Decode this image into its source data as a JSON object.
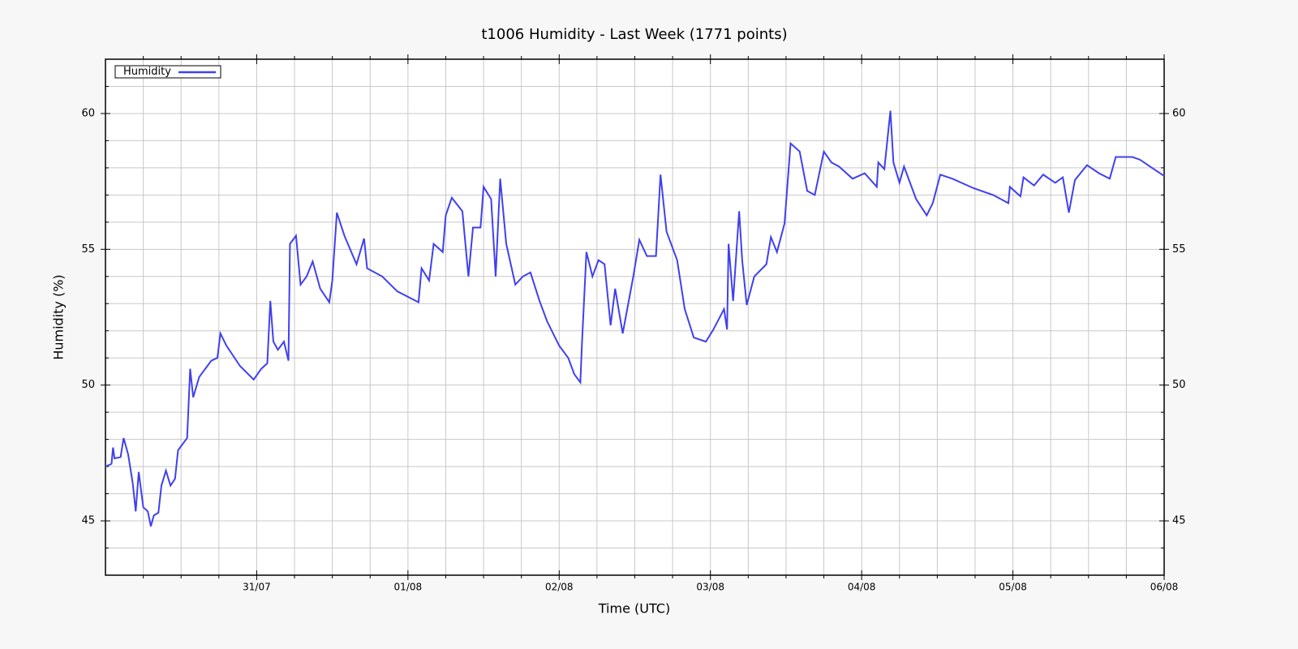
{
  "chart_data": {
    "type": "line",
    "title": "t1006 Humidity - Last Week (1771 points)",
    "x_label": "Time (UTC)",
    "y_label": "Humidity (%)",
    "xlim": [
      0,
      7
    ],
    "xticks": [
      {
        "value": 1,
        "label": "31/07"
      },
      {
        "value": 2,
        "label": "01/08"
      },
      {
        "value": 3,
        "label": "02/08"
      },
      {
        "value": 4,
        "label": "03/08"
      },
      {
        "value": 5,
        "label": "04/08"
      },
      {
        "value": 6,
        "label": "05/08"
      },
      {
        "value": 7,
        "label": "06/08"
      }
    ],
    "xminor": [
      0.25,
      0.5,
      0.75,
      1.25,
      1.5,
      1.75,
      2.25,
      2.5,
      2.75,
      3.25,
      3.5,
      3.75,
      4.25,
      4.5,
      4.75,
      5.25,
      5.5,
      5.75,
      6.25,
      6.5,
      6.75
    ],
    "ylim": [
      43,
      62
    ],
    "yticks": [
      45,
      50,
      55,
      60
    ],
    "yminor": [
      44,
      46,
      47,
      48,
      49,
      51,
      52,
      53,
      54,
      56,
      57,
      58,
      59,
      61
    ],
    "grid": true,
    "legend": "top-left",
    "x": [
      0,
      0.04,
      0.05,
      0.06,
      0.1,
      0.12,
      0.15,
      0.18,
      0.2,
      0.22,
      0.25,
      0.28,
      0.3,
      0.32,
      0.35,
      0.37,
      0.4,
      0.43,
      0.46,
      0.48,
      0.54,
      0.56,
      0.58,
      0.62,
      0.7,
      0.74,
      0.76,
      0.8,
      0.89,
      0.98,
      1.03,
      1.07,
      1.09,
      1.11,
      1.14,
      1.18,
      1.21,
      1.22,
      1.26,
      1.29,
      1.33,
      1.37,
      1.42,
      1.48,
      1.5,
      1.53,
      1.58,
      1.66,
      1.71,
      1.73,
      1.83,
      1.93,
      2.07,
      2.09,
      2.14,
      2.17,
      2.23,
      2.25,
      2.29,
      2.36,
      2.4,
      2.43,
      2.48,
      2.5,
      2.55,
      2.58,
      2.61,
      2.65,
      2.71,
      2.76,
      2.81,
      2.87,
      2.92,
      3.0,
      3.06,
      3.1,
      3.14,
      3.15,
      3.18,
      3.22,
      3.26,
      3.3,
      3.34,
      3.37,
      3.42,
      3.49,
      3.53,
      3.58,
      3.64,
      3.67,
      3.71,
      3.78,
      3.83,
      3.89,
      3.97,
      4.02,
      4.09,
      4.11,
      4.12,
      4.15,
      4.19,
      4.21,
      4.24,
      4.29,
      4.37,
      4.4,
      4.44,
      4.49,
      4.53,
      4.59,
      4.64,
      4.69,
      4.75,
      4.8,
      4.85,
      4.94,
      5.02,
      5.1,
      5.11,
      5.15,
      5.19,
      5.21,
      5.25,
      5.28,
      5.36,
      5.43,
      5.47,
      5.52,
      5.6,
      5.74,
      5.87,
      5.97,
      5.98,
      6.05,
      6.07,
      6.14,
      6.2,
      6.28,
      6.33,
      6.37,
      6.41,
      6.49,
      6.57,
      6.64,
      6.68,
      6.79,
      6.84,
      6.92,
      7.0
    ],
    "series": [
      {
        "name": "Humidity",
        "color": "#4040f0",
        "values": [
          47.0,
          47.1,
          47.7,
          47.3,
          47.35,
          48.05,
          47.45,
          46.4,
          45.35,
          46.8,
          45.5,
          45.35,
          44.8,
          45.2,
          45.3,
          46.3,
          46.85,
          46.3,
          46.55,
          47.6,
          48.05,
          50.6,
          49.55,
          50.3,
          50.9,
          51.0,
          51.9,
          51.45,
          50.7,
          50.2,
          50.6,
          50.8,
          53.1,
          51.6,
          51.3,
          51.6,
          50.9,
          55.2,
          55.5,
          53.7,
          54.0,
          54.55,
          53.55,
          53.05,
          53.85,
          56.35,
          55.5,
          54.45,
          55.4,
          54.3,
          54.0,
          53.45,
          53.05,
          54.3,
          53.85,
          55.2,
          54.9,
          56.25,
          56.9,
          56.4,
          54.0,
          55.8,
          55.8,
          57.3,
          56.85,
          54.0,
          57.6,
          55.2,
          53.7,
          54.0,
          54.15,
          53.1,
          52.35,
          51.45,
          51.0,
          50.4,
          50.1,
          51.45,
          54.9,
          54.0,
          54.6,
          54.45,
          52.2,
          53.55,
          51.9,
          54.0,
          55.35,
          54.75,
          54.75,
          57.75,
          55.65,
          54.6,
          52.8,
          51.75,
          51.6,
          52.05,
          52.8,
          52.05,
          55.2,
          53.1,
          56.4,
          54.6,
          52.95,
          54.0,
          54.45,
          55.45,
          54.9,
          55.95,
          58.9,
          58.6,
          57.15,
          57.0,
          58.6,
          58.2,
          58.05,
          57.6,
          57.8,
          57.3,
          58.2,
          57.95,
          60.1,
          58.2,
          57.45,
          58.05,
          56.85,
          56.25,
          56.7,
          57.75,
          57.6,
          57.25,
          57.0,
          56.7,
          57.3,
          56.95,
          57.65,
          57.35,
          57.75,
          57.45,
          57.65,
          56.35,
          57.55,
          58.1,
          57.8,
          57.6,
          58.4,
          58.4,
          58.3,
          58.0,
          57.7
        ]
      }
    ]
  }
}
